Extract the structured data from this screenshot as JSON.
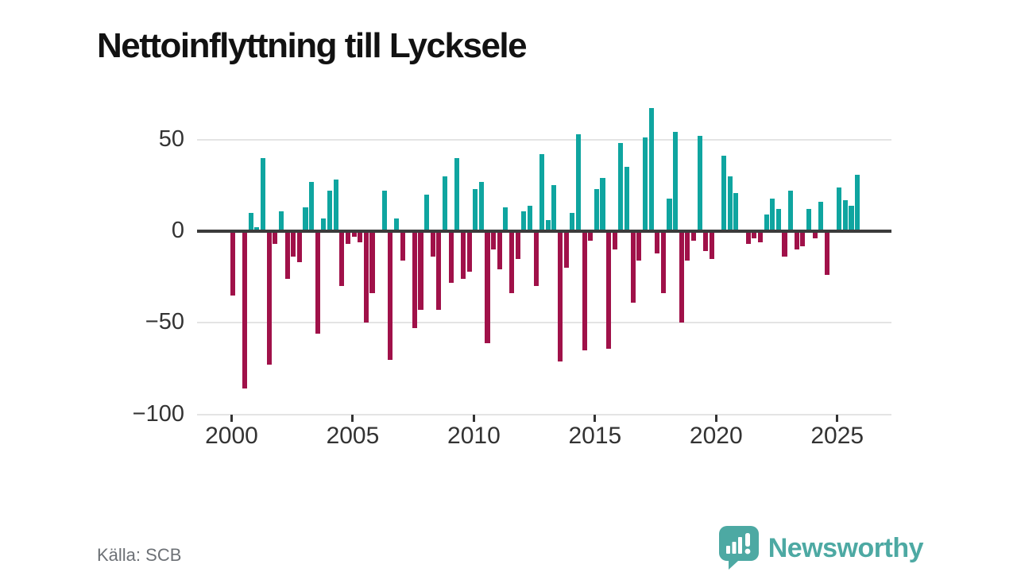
{
  "title": "Nettoinflyttning till Lycksele",
  "source_label": "Källa: SCB",
  "brand": {
    "name": "Newsworthy",
    "icon": "newsworthy-bubble-chart-icon"
  },
  "colors": {
    "positive_bar": "#0fa5a0",
    "negative_bar": "#a01149",
    "zero_line": "#3b3b3b",
    "grid_line": "#e4e4e4",
    "axis_text": "#333333",
    "title_text": "#121212",
    "source_text": "#6d7176",
    "brand_teal": "#4da9a3"
  },
  "chart_data": {
    "type": "bar",
    "title": "Nettoinflyttning till Lycksele",
    "x_start": "2000-Q1",
    "frequency": "quarterly",
    "values": [
      -35,
      0,
      -86,
      10,
      2,
      40,
      -73,
      -7,
      11,
      -26,
      -14,
      -17,
      13,
      27,
      -56,
      7,
      22,
      28,
      -30,
      -7,
      -3,
      -6,
      -50,
      -34,
      0,
      22,
      -70,
      7,
      -16,
      1,
      -53,
      -43,
      20,
      -14,
      -43,
      30,
      -28,
      40,
      -26,
      -22,
      23,
      27,
      -61,
      -10,
      -21,
      13,
      -34,
      -15,
      11,
      14,
      -30,
      42,
      6,
      25,
      -71,
      -20,
      10,
      53,
      -65,
      -5,
      23,
      29,
      -64,
      -10,
      48,
      35,
      -39,
      -16,
      51,
      67,
      -12,
      -34,
      18,
      54,
      -50,
      -16,
      -5,
      52,
      -11,
      -15,
      0,
      41,
      30,
      21,
      0,
      -7,
      -4,
      -6,
      9,
      18,
      12,
      -14,
      22,
      -10,
      -8,
      12,
      -4,
      16,
      -24,
      1,
      24,
      17,
      14,
      31
    ],
    "xticks": [
      2000,
      2005,
      2010,
      2015,
      2020,
      2025
    ],
    "x_tick_labels": [
      "2000",
      "2005",
      "2010",
      "2015",
      "2020",
      "2025"
    ],
    "yticks": [
      50,
      0,
      -50,
      -100
    ],
    "y_tick_labels": [
      "50",
      "0",
      "−50",
      "−100"
    ],
    "ylim": [
      -100,
      70
    ],
    "grid": "horizontal",
    "legend": "none",
    "positive_color": "#0fa5a0",
    "negative_color": "#a01149"
  }
}
